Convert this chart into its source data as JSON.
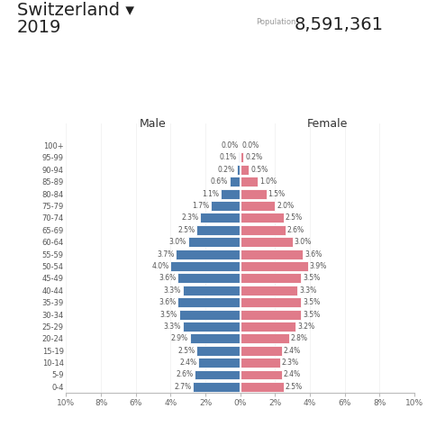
{
  "title_country": "Switzerland ▾",
  "title_year": "2019",
  "population_label": "Population:",
  "population_value": "8,591,361",
  "age_groups": [
    "0-4",
    "5-9",
    "10-14",
    "15-19",
    "20-24",
    "25-29",
    "30-34",
    "35-39",
    "40-44",
    "45-49",
    "50-54",
    "55-59",
    "60-64",
    "65-69",
    "70-74",
    "75-79",
    "80-84",
    "85-89",
    "90-94",
    "95-99",
    "100+"
  ],
  "male": [
    2.7,
    2.6,
    2.4,
    2.5,
    2.9,
    3.3,
    3.5,
    3.6,
    3.3,
    3.6,
    4.0,
    3.7,
    3.0,
    2.5,
    2.3,
    1.7,
    1.1,
    0.6,
    0.2,
    0.1,
    0.0
  ],
  "female": [
    2.5,
    2.4,
    2.3,
    2.4,
    2.8,
    3.2,
    3.5,
    3.5,
    3.3,
    3.5,
    3.9,
    3.6,
    3.0,
    2.6,
    2.5,
    2.0,
    1.5,
    1.0,
    0.5,
    0.2,
    0.0
  ],
  "male_color": "#4a7aad",
  "female_color": "#e07b8a",
  "background_color": "#ffffff",
  "xlim": 10,
  "male_label": "Male",
  "female_label": "Female",
  "title_fontsize": 14,
  "year_fontsize": 14,
  "pop_label_fontsize": 6,
  "pop_value_fontsize": 14,
  "bar_label_fontsize": 5.5,
  "ytick_fontsize": 6,
  "xtick_fontsize": 6.5
}
